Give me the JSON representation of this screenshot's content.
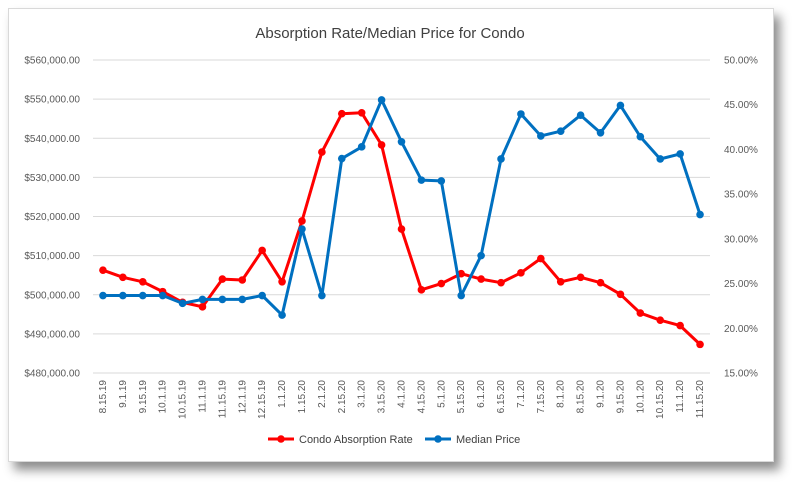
{
  "chart_data": {
    "type": "line",
    "title": "Absorption Rate/Median Price for Condo",
    "categories": [
      "8.15.19",
      "9.1.19",
      "9.15.19",
      "10.1.19",
      "10.15.19",
      "11.1.19",
      "11.15.19",
      "12.1.19",
      "12.15.19",
      "1.1.20",
      "1.15.20",
      "2.1.20",
      "2.15.20",
      "3.1.20",
      "3.15.20",
      "4.1.20",
      "4.15.20",
      "5.1.20",
      "5.15.20",
      "6.1.20",
      "6.15.20",
      "7.1.20",
      "7.15.20",
      "8.1.20",
      "8.15.20",
      "9.1.20",
      "9.15.20",
      "10.1.20",
      "10.15.20",
      "11.1.20",
      "11.15.20"
    ],
    "y_left": {
      "label": "",
      "ticks": [
        "$480,000.00",
        "$490,000.00",
        "$500,000.00",
        "$510,000.00",
        "$520,000.00",
        "$530,000.00",
        "$540,000.00",
        "$550,000.00",
        "$560,000.00"
      ],
      "range": [
        480000,
        560000
      ]
    },
    "y_right": {
      "label": "",
      "ticks": [
        "15.00%",
        "20.00%",
        "25.00%",
        "30.00%",
        "35.00%",
        "40.00%",
        "45.00%",
        "50.00%"
      ],
      "range": [
        0.15,
        0.5
      ]
    },
    "series": [
      {
        "name": "Condo Absorption Rate",
        "axis": "right",
        "color": "#ff0000",
        "values": [
          0.265,
          0.257,
          0.252,
          0.241,
          0.229,
          0.224,
          0.255,
          0.254,
          0.287,
          0.252,
          0.32,
          0.397,
          0.44,
          0.441,
          0.405,
          0.311,
          0.243,
          0.25,
          0.261,
          0.255,
          0.251,
          0.262,
          0.278,
          0.252,
          0.257,
          0.251,
          0.238,
          0.217,
          0.209,
          0.203,
          0.182
        ]
      },
      {
        "name": "Median Price",
        "axis": "left",
        "color": "#0070c0",
        "values": [
          499800,
          499800,
          499800,
          499800,
          497800,
          498800,
          498800,
          498800,
          499800,
          494800,
          516800,
          499800,
          534800,
          537800,
          549800,
          539100,
          529300,
          529100,
          499800,
          510000,
          534700,
          546200,
          540600,
          541800,
          545900,
          541400,
          548400,
          540400,
          534700,
          536000,
          520500
        ]
      }
    ],
    "legend": {
      "position": "bottom",
      "entries": [
        "Condo Absorption Rate",
        "Median Price"
      ]
    },
    "grid": true
  }
}
